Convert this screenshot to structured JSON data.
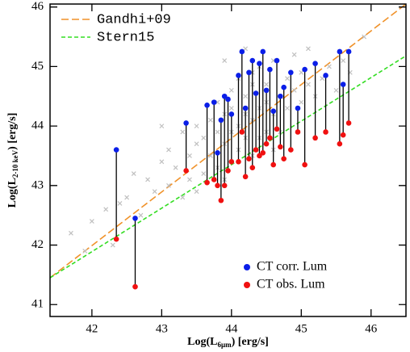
{
  "chart_data": {
    "type": "scatter",
    "xlim": [
      41.4,
      46.5
    ],
    "ylim": [
      40.8,
      46.05
    ],
    "xticks": [
      42,
      43,
      44,
      45,
      46
    ],
    "yticks": [
      41,
      42,
      43,
      44,
      45,
      46
    ],
    "x_label": {
      "main": "Log(L",
      "sub": "6μm",
      "rest": ") [erg/s]"
    },
    "y_label": {
      "main": "Log(L",
      "sub": "2-10 keV",
      "rest": ") [erg/s]"
    },
    "connected": true,
    "series": [
      {
        "name": "Gandhi+09",
        "color": "#f0922a",
        "style": "line",
        "dash": "9,4",
        "x": [
          41.4,
          46.5
        ],
        "values": [
          41.45,
          46.05
        ]
      },
      {
        "name": "Stern15",
        "color": "#33dd22",
        "style": "line",
        "dash": "5,3",
        "x": [
          41.4,
          46.5
        ],
        "values": [
          41.45,
          45.18
        ]
      },
      {
        "color": "#c0c0c0",
        "style": "cross",
        "x": [
          41.7,
          41.9,
          42.0,
          42.2,
          42.3,
          42.5,
          42.6,
          42.7,
          42.8,
          42.9,
          43.0,
          43.1,
          43.1,
          43.2,
          43.3,
          43.3,
          43.4,
          43.4,
          43.5,
          43.5,
          43.6,
          43.6,
          43.7,
          43.7,
          43.8,
          43.8,
          43.8,
          43.9,
          43.9,
          43.9,
          44.0,
          44.0,
          44.0,
          44.0,
          44.1,
          44.1,
          44.1,
          44.2,
          44.2,
          44.2,
          44.3,
          44.3,
          44.3,
          44.4,
          44.4,
          44.4,
          44.5,
          44.5,
          44.5,
          44.6,
          44.6,
          44.7,
          44.7,
          44.8,
          44.8,
          44.9,
          44.9,
          45.0,
          45.0,
          45.1,
          45.1,
          45.2,
          45.3,
          45.4,
          45.5,
          45.6,
          45.7,
          45.9,
          43.0,
          43.5,
          44.2,
          44.6,
          42.4,
          43.9,
          44.3
        ],
        "values": [
          42.2,
          41.9,
          42.4,
          42.6,
          42.0,
          42.8,
          43.2,
          42.5,
          43.1,
          42.9,
          43.4,
          43.0,
          43.6,
          43.3,
          42.8,
          43.9,
          43.5,
          43.1,
          43.7,
          44.0,
          43.2,
          43.8,
          44.1,
          43.5,
          43.9,
          43.3,
          44.4,
          43.7,
          44.2,
          43.1,
          44.6,
          43.9,
          43.4,
          44.3,
          44.0,
          44.8,
          43.6,
          44.5,
          43.8,
          44.2,
          44.1,
          43.5,
          44.9,
          44.3,
          43.8,
          45.0,
          44.4,
          43.9,
          44.7,
          44.2,
          45.1,
          44.5,
          43.9,
          44.8,
          44.3,
          44.6,
          45.2,
          44.4,
          44.9,
          44.7,
          45.3,
          44.5,
          44.8,
          45.0,
          44.6,
          45.1,
          44.9,
          45.5,
          44.0,
          42.9,
          45.3,
          43.6,
          42.7,
          45.1,
          44.7
        ]
      },
      {
        "name": "CT corr. Lum",
        "color": "#0a1ee8",
        "style": "dot",
        "x": [
          42.35,
          42.62,
          43.35,
          43.65,
          43.75,
          43.8,
          43.85,
          43.9,
          43.95,
          44.0,
          44.1,
          44.15,
          44.2,
          44.25,
          44.3,
          44.35,
          44.4,
          44.45,
          44.5,
          44.55,
          44.6,
          44.65,
          44.7,
          44.75,
          44.85,
          44.95,
          45.05,
          45.2,
          45.35,
          45.55,
          45.6,
          45.68
        ],
        "values": [
          43.6,
          42.45,
          44.05,
          44.35,
          44.4,
          43.55,
          44.1,
          44.5,
          44.45,
          44.2,
          44.85,
          45.25,
          44.3,
          44.9,
          45.1,
          44.55,
          45.05,
          45.25,
          44.6,
          44.95,
          44.25,
          45.1,
          44.5,
          44.65,
          44.9,
          44.3,
          44.95,
          45.05,
          44.85,
          45.25,
          44.7,
          45.25
        ]
      },
      {
        "name": "CT obs. Lum",
        "color": "#f01010",
        "style": "dot",
        "x": [
          42.35,
          42.62,
          43.35,
          43.65,
          43.75,
          43.8,
          43.85,
          43.9,
          43.95,
          44.0,
          44.1,
          44.15,
          44.2,
          44.25,
          44.3,
          44.35,
          44.4,
          44.45,
          44.5,
          44.55,
          44.6,
          44.65,
          44.7,
          44.75,
          44.85,
          44.95,
          45.05,
          45.2,
          45.35,
          45.55,
          45.6,
          45.68
        ],
        "values": [
          42.1,
          41.3,
          43.25,
          43.05,
          43.1,
          43.0,
          42.75,
          43.0,
          43.25,
          43.4,
          43.4,
          43.9,
          43.15,
          43.45,
          43.3,
          43.6,
          43.5,
          43.55,
          43.7,
          43.8,
          43.35,
          43.95,
          43.65,
          43.45,
          43.6,
          43.9,
          43.35,
          43.8,
          43.9,
          43.7,
          43.85,
          44.05
        ]
      }
    ]
  }
}
